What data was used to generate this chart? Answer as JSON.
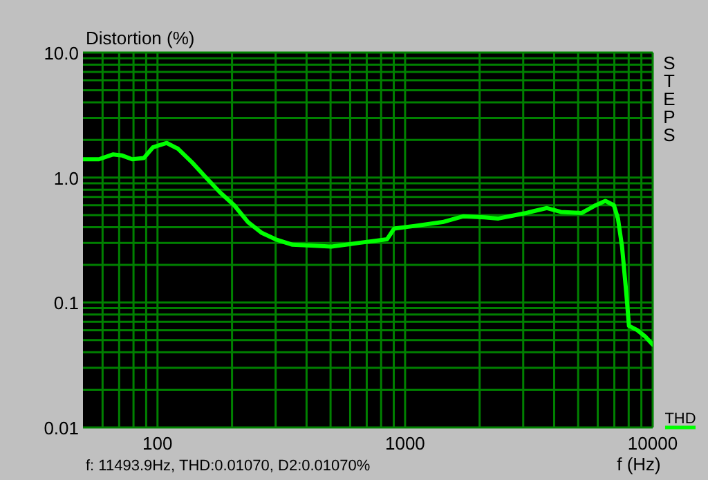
{
  "chart_data": {
    "type": "line",
    "ylabel": "Distortion (%)",
    "xlabel": "f (Hz)",
    "annotations": [
      "STEPS",
      "f: 11493.9Hz,  THD:0.01070,  D2:0.01070%"
    ],
    "log": "xy",
    "grid": true,
    "legend": "bottom right",
    "line_style": "solid",
    "marker": "none",
    "xlim": [
      50,
      10000
    ],
    "ylim": [
      0.01,
      10
    ],
    "xticks": [
      {
        "value": 60,
        "label": null
      },
      {
        "value": 70,
        "label": null
      },
      {
        "value": 80,
        "label": null
      },
      {
        "value": 90,
        "label": null
      },
      100,
      {
        "value": 200,
        "label": null
      },
      {
        "value": 300,
        "label": null
      },
      {
        "value": 400,
        "label": null
      },
      {
        "value": 500,
        "label": null
      },
      {
        "value": 600,
        "label": null
      },
      {
        "value": 700,
        "label": null
      },
      {
        "value": 800,
        "label": null
      },
      {
        "value": 900,
        "label": null
      },
      1000,
      {
        "value": 2000,
        "label": null
      },
      {
        "value": 3000,
        "label": null
      },
      {
        "value": 4000,
        "label": null
      },
      {
        "value": 5000,
        "label": null
      },
      {
        "value": 6000,
        "label": null
      },
      {
        "value": 7000,
        "label": null
      },
      {
        "value": 8000,
        "label": null
      },
      {
        "value": 9000,
        "label": null
      },
      10000
    ],
    "yticks": [
      0.01,
      {
        "value": 0.02,
        "label": null
      },
      {
        "value": 0.03,
        "label": null
      },
      {
        "value": 0.04,
        "label": null
      },
      {
        "value": 0.05,
        "label": null
      },
      {
        "value": 0.06,
        "label": null
      },
      {
        "value": 0.07,
        "label": null
      },
      {
        "value": 0.08,
        "label": null
      },
      {
        "value": 0.09,
        "label": null
      },
      0.1,
      {
        "value": 0.2,
        "label": null
      },
      {
        "value": 0.3,
        "label": null
      },
      {
        "value": 0.4,
        "label": null
      },
      {
        "value": 0.5,
        "label": null
      },
      {
        "value": 0.6,
        "label": null
      },
      {
        "value": 0.7,
        "label": null
      },
      {
        "value": 0.8,
        "label": null
      },
      {
        "value": 0.9,
        "label": null
      },
      {
        "value": 1,
        "label": "1.0"
      },
      {
        "value": 2,
        "label": null
      },
      {
        "value": 3,
        "label": null
      },
      {
        "value": 4,
        "label": null
      },
      {
        "value": 5,
        "label": null
      },
      {
        "value": 6,
        "label": null
      },
      {
        "value": 7,
        "label": null
      },
      {
        "value": 8,
        "label": null
      },
      {
        "value": 9,
        "label": null
      },
      {
        "value": 10,
        "label": "10.0"
      }
    ],
    "series": [
      {
        "name": "THD",
        "color": "#00ff00",
        "x": [
          50,
          58,
          66,
          72,
          79,
          88,
          96,
          109,
          121,
          138,
          157,
          179,
          204,
          232,
          264,
          300,
          351,
          504,
          653,
          845,
          902,
          1095,
          1418,
          1722,
          2090,
          2380,
          3080,
          3740,
          4260,
          5170,
          5890,
          6440,
          6970,
          7240,
          7520,
          7820,
          8020,
          8670,
          9370,
          10000
        ],
        "values": [
          1.4,
          1.4,
          1.53,
          1.5,
          1.4,
          1.43,
          1.75,
          1.89,
          1.7,
          1.32,
          1.0,
          0.76,
          0.6,
          0.44,
          0.36,
          0.32,
          0.29,
          0.28,
          0.3,
          0.32,
          0.39,
          0.41,
          0.44,
          0.49,
          0.48,
          0.47,
          0.52,
          0.57,
          0.53,
          0.52,
          0.6,
          0.65,
          0.6,
          0.47,
          0.28,
          0.12,
          0.065,
          0.06,
          0.053,
          0.046
        ]
      }
    ]
  }
}
